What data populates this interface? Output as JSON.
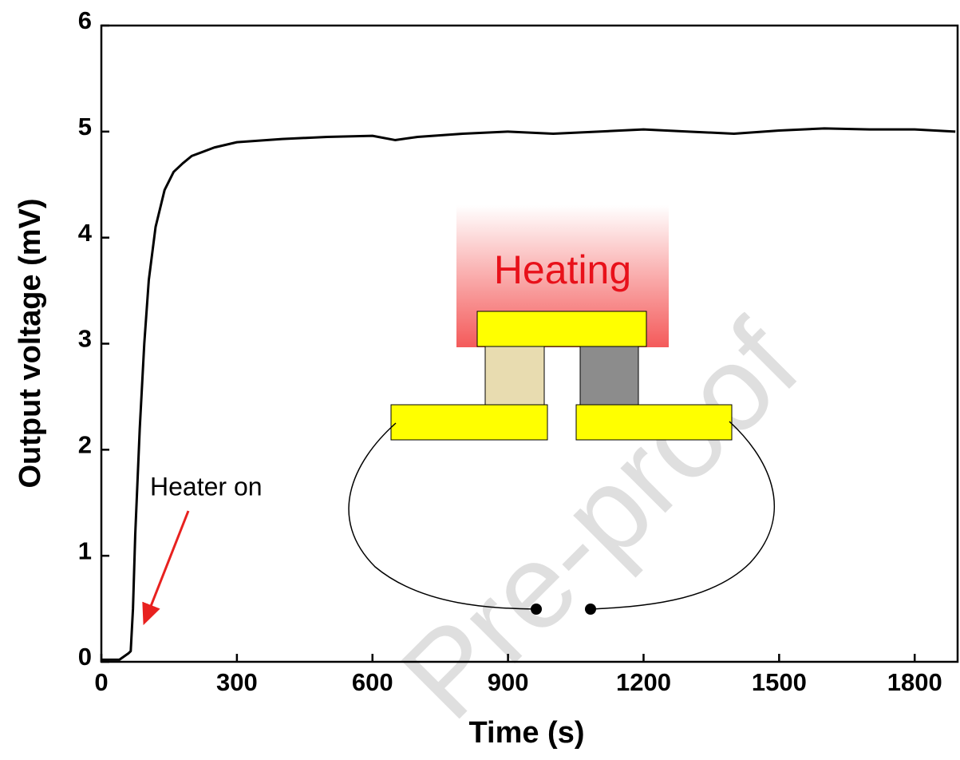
{
  "chart_data": {
    "type": "line",
    "x_label": "Time (s)",
    "y_label": "Output voltage (mV)",
    "xlim": [
      0,
      1895
    ],
    "ylim": [
      0,
      6
    ],
    "xticks": [
      0,
      300,
      600,
      900,
      1200,
      1500,
      1800
    ],
    "yticks": [
      0,
      1,
      2,
      3,
      4,
      5,
      6
    ],
    "series": [
      {
        "color": "#000000",
        "x": [
          0,
          40,
          60,
          65,
          70,
          75,
          85,
          95,
          105,
          120,
          140,
          160,
          180,
          200,
          250,
          300,
          400,
          500,
          600,
          650,
          700,
          800,
          900,
          1000,
          1100,
          1200,
          1300,
          1400,
          1500,
          1600,
          1700,
          1800,
          1890
        ],
        "values": [
          0.02,
          0.02,
          0.08,
          0.1,
          0.5,
          1.2,
          2.2,
          3.0,
          3.6,
          4.1,
          4.45,
          4.62,
          4.7,
          4.77,
          4.85,
          4.9,
          4.93,
          4.95,
          4.96,
          4.92,
          4.95,
          4.98,
          5.0,
          4.98,
          5.0,
          5.02,
          5.0,
          4.98,
          5.01,
          5.03,
          5.02,
          5.02,
          5.0
        ]
      }
    ],
    "annotations": {
      "heater": "Heater on",
      "heating": "Heating",
      "watermark": "Pre-proof"
    }
  }
}
